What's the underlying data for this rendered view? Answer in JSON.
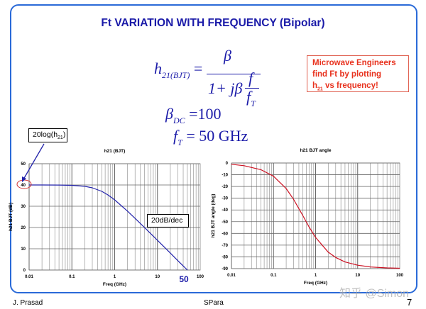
{
  "slide": {
    "title": "Ft VARIATION WITH FREQUENCY (Bipolar)",
    "equation": {
      "lhs_h": "h",
      "lhs_sub": "21(BJT)",
      "equals": "=",
      "numerator": "β",
      "den_prefix": "1+ jβ",
      "frac_num": "f",
      "frac_den": "f",
      "frac_den_sub": "T"
    },
    "beta_dc": {
      "symbol": "β",
      "sub": "DC",
      "value": "=100"
    },
    "ft": {
      "symbol": "f",
      "sub": "T",
      "value": "= 50 GHz"
    },
    "note": {
      "line1": "Microwave Engineers",
      "line2": "find Ft by plotting",
      "line3_h": "h",
      "line3_sub": "21",
      "line3_rest": " vs frequency!"
    },
    "callout_20log": {
      "prefix": "20log(h",
      "sub": "21",
      "suffix": ")"
    },
    "callout_slope": "20dB/dec",
    "callout_ft": "50",
    "footer": {
      "author": "J. Prasad",
      "center": "SPara",
      "page": "7"
    },
    "watermark": "知乎 @Simon",
    "colors": {
      "frame": "#2a6ad8",
      "title": "#1a1aa8",
      "note": "#e8321e",
      "mag_line": "#2222aa",
      "phase_line": "#cc1122"
    }
  },
  "chart_data": [
    {
      "type": "line",
      "title": "h21 (BJT)",
      "xlabel": "Freq (GHz)",
      "ylabel": "h21 BJT (dB)",
      "xscale": "log",
      "xlim": [
        0.01,
        100
      ],
      "ylim": [
        0,
        50
      ],
      "xticks": [
        "0.01",
        "0.1",
        "1",
        "10",
        "100"
      ],
      "yticks": [
        "0",
        "10",
        "20",
        "30",
        "40",
        "50"
      ],
      "grid": true,
      "x": [
        0.01,
        0.02,
        0.05,
        0.1,
        0.2,
        0.3,
        0.5,
        0.7,
        1,
        2,
        3,
        5,
        10,
        20,
        30,
        50
      ],
      "y": [
        40,
        40,
        39.96,
        39.83,
        39.36,
        38.66,
        36.99,
        35.3,
        33.01,
        27.7,
        24.3,
        19.96,
        13.98,
        7.96,
        4.4,
        0
      ]
    },
    {
      "type": "line",
      "title": "h21 BJT angle",
      "xlabel": "Freq (GHz)",
      "ylabel": "h21 BJT angle (deg)",
      "xscale": "log",
      "xlim": [
        0.01,
        100
      ],
      "ylim": [
        -90,
        0
      ],
      "xticks": [
        "0.01",
        "0.1",
        "1",
        "10",
        "100"
      ],
      "yticks": [
        "0",
        "-10",
        "-20",
        "-30",
        "-40",
        "-50",
        "-60",
        "-70",
        "-80",
        "-90"
      ],
      "grid": true,
      "x": [
        0.01,
        0.02,
        0.05,
        0.1,
        0.2,
        0.3,
        0.5,
        0.7,
        1,
        2,
        3,
        5,
        10,
        20,
        50,
        100
      ],
      "y": [
        -1.1,
        -2.3,
        -5.7,
        -11.3,
        -21.8,
        -31,
        -45,
        -54.5,
        -63.4,
        -76,
        -80.5,
        -84.3,
        -87.1,
        -88.6,
        -89.4,
        -89.7
      ]
    }
  ]
}
